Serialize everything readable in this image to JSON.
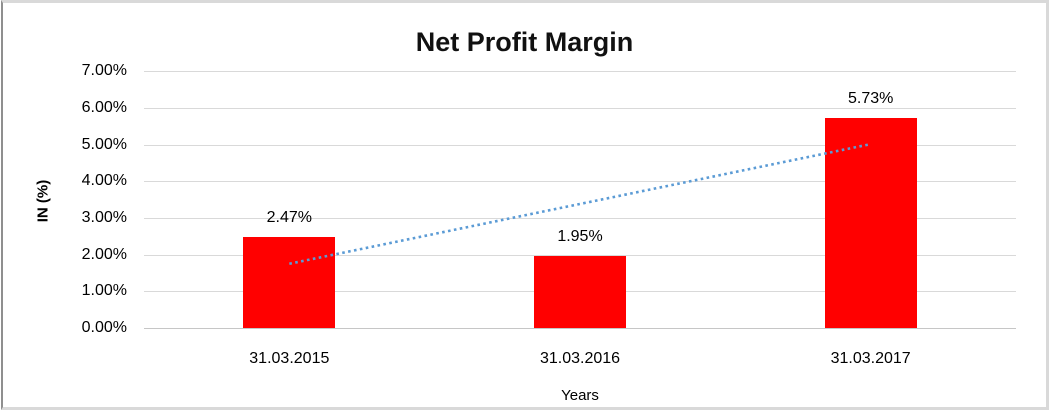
{
  "chart_data": {
    "type": "bar",
    "title": "Net Profit Margin",
    "xlabel": "Years",
    "ylabel": "IN (%)",
    "categories": [
      "31.03.2015",
      "31.03.2016",
      "31.03.2017"
    ],
    "values": [
      2.47,
      1.95,
      5.73
    ],
    "data_labels": [
      "2.47%",
      "1.95%",
      "5.73%"
    ],
    "ytick_labels": [
      "0.00%",
      "1.00%",
      "2.00%",
      "3.00%",
      "4.00%",
      "5.00%",
      "6.00%",
      "7.00%"
    ],
    "ylim": [
      0,
      7
    ],
    "ytick_interval": 1,
    "grid": true,
    "legend": "none",
    "bar_color": "#ff0000",
    "gridline_color": "#d9d9d9",
    "trendline": {
      "type": "linear",
      "style": "dotted",
      "color": "#5b9bd5",
      "start_value": 1.75,
      "end_value": 5.01
    }
  }
}
